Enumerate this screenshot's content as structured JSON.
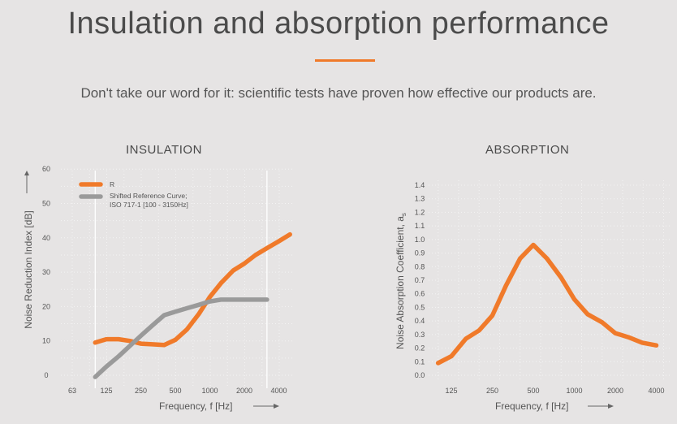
{
  "header": {
    "title": "Insulation and absorption performance",
    "subtitle": "Don't take our word for it: scientific tests have proven how effective our products are."
  },
  "colors": {
    "accent": "#f07a2a",
    "reference": "#9a9a9a",
    "background": "#e6e4e4"
  },
  "chart_data": [
    {
      "type": "line",
      "title": "INSULATION",
      "xlabel": "Frequency, f [Hz]",
      "ylabel": "Noise Reduction Index [dB]",
      "x_scale": "log",
      "x_ticks": [
        "63",
        "125",
        "250",
        "500",
        "1000",
        "2000",
        "4000"
      ],
      "y_ticks": [
        "0",
        "10",
        "20",
        "30",
        "40",
        "50",
        "60"
      ],
      "ylim": [
        0,
        60
      ],
      "legend_position": "top-left",
      "grid": true,
      "series": [
        {
          "name": "R",
          "color": "#f07a2a",
          "x": [
            100,
            125,
            160,
            200,
            250,
            315,
            400,
            500,
            630,
            800,
            1000,
            1250,
            1600,
            2000,
            2500,
            3150,
            4000,
            5000
          ],
          "y": [
            9.5,
            10.5,
            10.5,
            10,
            9.2,
            9,
            8.8,
            10.3,
            13.3,
            17.8,
            22.8,
            26.8,
            30.5,
            32.5,
            35,
            37,
            39,
            41
          ]
        },
        {
          "name": "Shifted Reference Curve;\nISO 717-1 [100 - 3150Hz]",
          "name_lines": [
            "Shifted Reference Curve;",
            "ISO 717-1 [100 - 3150Hz]"
          ],
          "color": "#9a9a9a",
          "x": [
            100,
            125,
            160,
            200,
            250,
            315,
            400,
            500,
            630,
            800,
            1000,
            1250,
            1600,
            2000,
            2500,
            3150
          ],
          "y": [
            -0.5,
            2.5,
            5.5,
            8.5,
            11.5,
            14.5,
            17.5,
            18.5,
            19.5,
            20.5,
            21.5,
            22,
            22,
            22,
            22,
            22
          ]
        }
      ]
    },
    {
      "type": "line",
      "title": "ABSORPTION",
      "xlabel": "Frequency, f [Hz]",
      "ylabel": "Noise Absorption Coefficient, αs",
      "ylabel_main": "Noise Absorption Coefficient, a",
      "ylabel_sub": "s",
      "x_scale": "log",
      "x_ticks": [
        "125",
        "250",
        "500",
        "1000",
        "2000",
        "4000"
      ],
      "y_ticks": [
        "0.0",
        "0.1",
        "0.2",
        "0.3",
        "0.4",
        "0.5",
        "0.6",
        "0.7",
        "0.8",
        "0.9",
        "1.0",
        "1.1",
        "1.2",
        "1.3",
        "1.4"
      ],
      "ylim": [
        0,
        1.4
      ],
      "grid": true,
      "series": [
        {
          "color": "#f07a2a",
          "x": [
            100,
            125,
            160,
            200,
            250,
            315,
            400,
            500,
            630,
            800,
            1000,
            1250,
            1600,
            2000,
            2500,
            3150,
            4000
          ],
          "y": [
            0.09,
            0.14,
            0.27,
            0.33,
            0.44,
            0.66,
            0.86,
            0.96,
            0.86,
            0.72,
            0.56,
            0.45,
            0.39,
            0.31,
            0.28,
            0.24,
            0.22
          ]
        }
      ]
    }
  ]
}
